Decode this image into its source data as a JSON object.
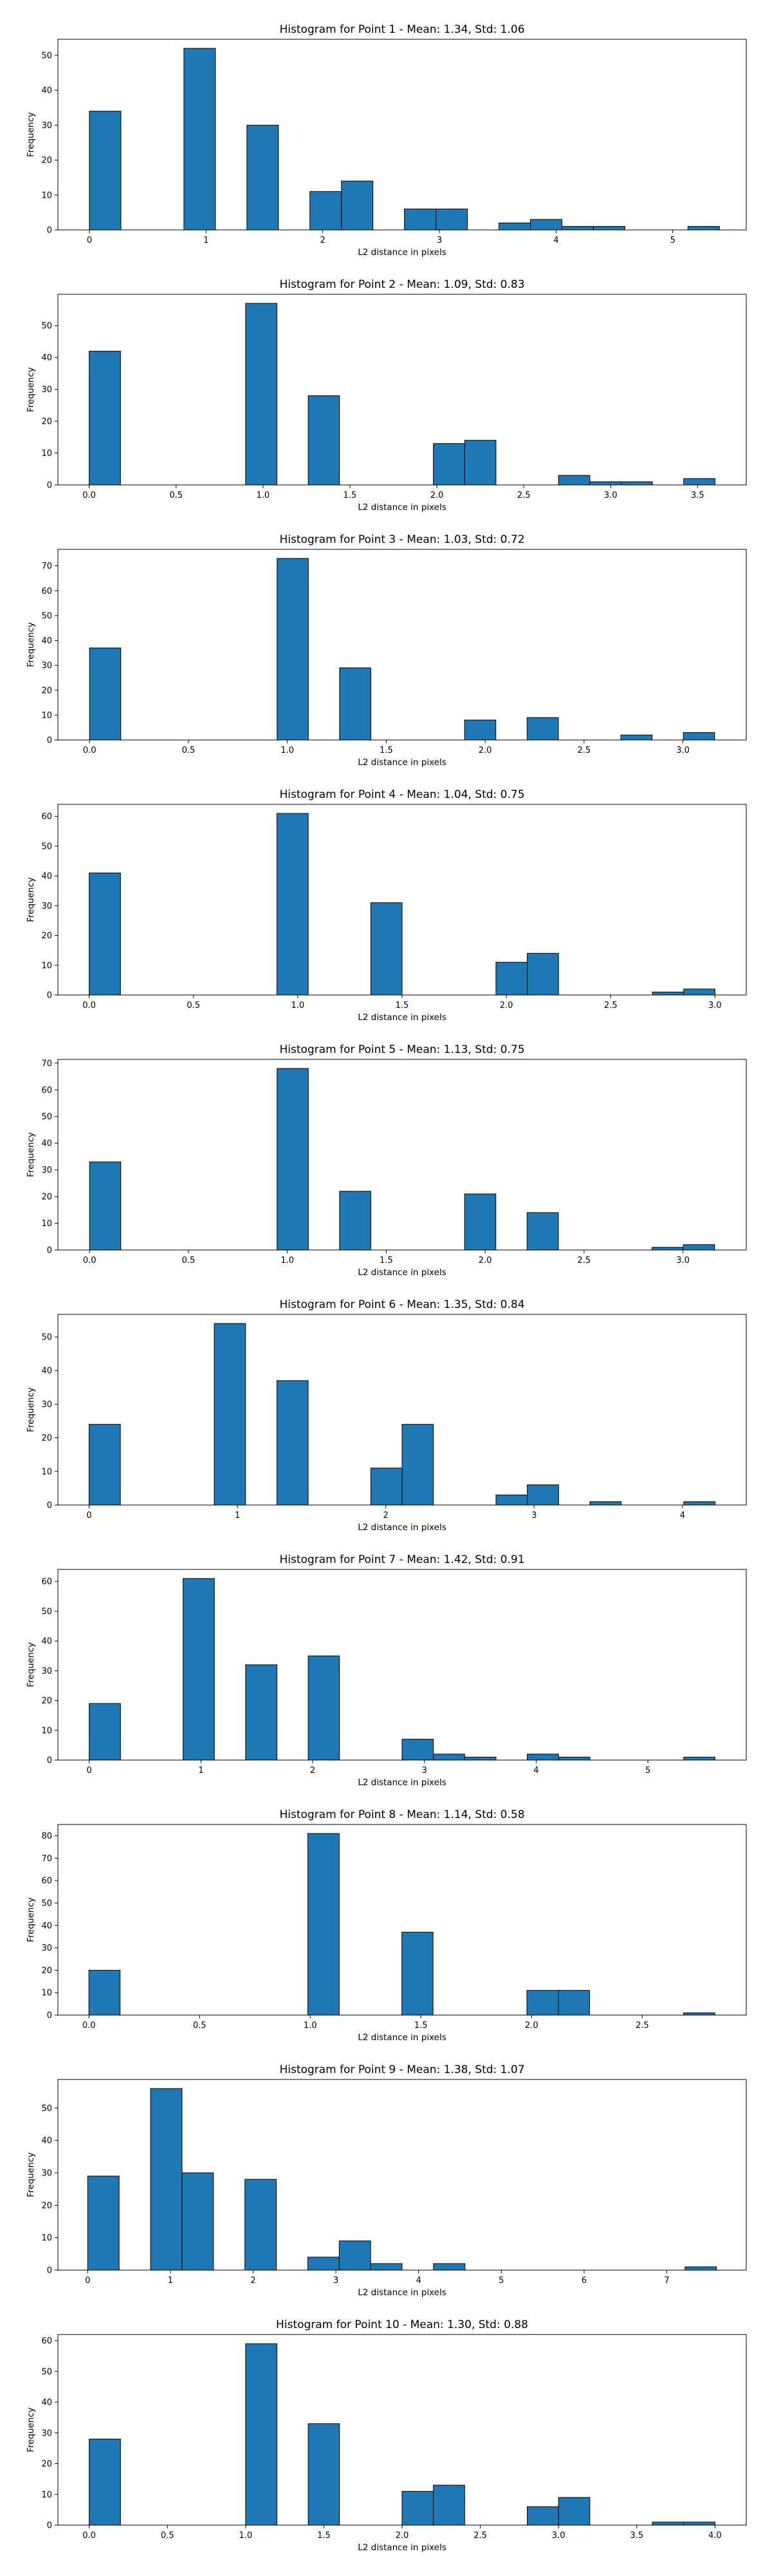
{
  "chart_data": [
    {
      "type": "bar",
      "title": "Histogram for Point 1 - Mean: 1.34, Std: 1.06",
      "xlabel": "L2 distance in pixels",
      "ylabel": "Frequency",
      "xlim": [
        -0.27,
        5.63
      ],
      "ylim": [
        0,
        54.6
      ],
      "xticks": [
        0,
        1,
        2,
        3,
        4,
        5
      ],
      "xtick_labels": [
        "0",
        "1",
        "2",
        "3",
        "4",
        "5"
      ],
      "yticks": [
        0,
        10,
        20,
        30,
        40,
        50
      ],
      "ytick_labels": [
        "0",
        "10",
        "20",
        "30",
        "40",
        "50"
      ],
      "bins": [
        {
          "x0": 0.0,
          "x1": 0.27,
          "count": 34
        },
        {
          "x0": 0.81,
          "x1": 1.08,
          "count": 52
        },
        {
          "x0": 1.35,
          "x1": 1.62,
          "count": 30
        },
        {
          "x0": 1.89,
          "x1": 2.16,
          "count": 11
        },
        {
          "x0": 2.16,
          "x1": 2.43,
          "count": 14
        },
        {
          "x0": 2.7,
          "x1": 2.97,
          "count": 6
        },
        {
          "x0": 2.97,
          "x1": 3.24,
          "count": 6
        },
        {
          "x0": 3.51,
          "x1": 3.78,
          "count": 2
        },
        {
          "x0": 3.78,
          "x1": 4.05,
          "count": 3
        },
        {
          "x0": 4.05,
          "x1": 4.32,
          "count": 1
        },
        {
          "x0": 4.32,
          "x1": 4.59,
          "count": 1
        },
        {
          "x0": 5.13,
          "x1": 5.4,
          "count": 1
        }
      ]
    },
    {
      "type": "bar",
      "title": "Histogram for Point 2 - Mean: 1.09, Std: 0.83",
      "xlabel": "L2 distance in pixels",
      "ylabel": "Frequency",
      "xlim": [
        -0.18,
        3.78
      ],
      "ylim": [
        0,
        59.85
      ],
      "xticks": [
        0,
        0.5,
        1,
        1.5,
        2,
        2.5,
        3,
        3.5
      ],
      "xtick_labels": [
        "0.0",
        "0.5",
        "1.0",
        "1.5",
        "2.0",
        "2.5",
        "3.0",
        "3.5"
      ],
      "yticks": [
        0,
        10,
        20,
        30,
        40,
        50
      ],
      "ytick_labels": [
        "0",
        "10",
        "20",
        "30",
        "40",
        "50"
      ],
      "bins": [
        {
          "x0": 0.0,
          "x1": 0.18,
          "count": 42
        },
        {
          "x0": 0.9,
          "x1": 1.08,
          "count": 57
        },
        {
          "x0": 1.26,
          "x1": 1.44,
          "count": 28
        },
        {
          "x0": 1.98,
          "x1": 2.16,
          "count": 13
        },
        {
          "x0": 2.16,
          "x1": 2.34,
          "count": 14
        },
        {
          "x0": 2.7,
          "x1": 2.88,
          "count": 3
        },
        {
          "x0": 2.88,
          "x1": 3.06,
          "count": 1
        },
        {
          "x0": 3.06,
          "x1": 3.24,
          "count": 1
        },
        {
          "x0": 3.42,
          "x1": 3.6,
          "count": 2
        }
      ]
    },
    {
      "type": "bar",
      "title": "Histogram for Point 3 - Mean: 1.03, Std: 0.72",
      "xlabel": "L2 distance in pixels",
      "ylabel": "Frequency",
      "xlim": [
        -0.16,
        3.32
      ],
      "ylim": [
        0,
        76.65
      ],
      "xticks": [
        0,
        0.5,
        1,
        1.5,
        2,
        2.5,
        3
      ],
      "xtick_labels": [
        "0.0",
        "0.5",
        "1.0",
        "1.5",
        "2.0",
        "2.5",
        "3.0"
      ],
      "yticks": [
        0,
        10,
        20,
        30,
        40,
        50,
        60,
        70
      ],
      "ytick_labels": [
        "0",
        "10",
        "20",
        "30",
        "40",
        "50",
        "60",
        "70"
      ],
      "bins": [
        {
          "x0": 0.0,
          "x1": 0.158,
          "count": 37
        },
        {
          "x0": 0.948,
          "x1": 1.106,
          "count": 73
        },
        {
          "x0": 1.264,
          "x1": 1.422,
          "count": 29
        },
        {
          "x0": 1.896,
          "x1": 2.054,
          "count": 8
        },
        {
          "x0": 2.212,
          "x1": 2.37,
          "count": 9
        },
        {
          "x0": 2.686,
          "x1": 2.844,
          "count": 2
        },
        {
          "x0": 3.002,
          "x1": 3.16,
          "count": 3
        }
      ]
    },
    {
      "type": "bar",
      "title": "Histogram for Point 4 - Mean: 1.04, Std: 0.75",
      "xlabel": "L2 distance in pixels",
      "ylabel": "Frequency",
      "xlim": [
        -0.15,
        3.15
      ],
      "ylim": [
        0,
        64.05
      ],
      "xticks": [
        0,
        0.5,
        1,
        1.5,
        2,
        2.5,
        3
      ],
      "xtick_labels": [
        "0.0",
        "0.5",
        "1.0",
        "1.5",
        "2.0",
        "2.5",
        "3.0"
      ],
      "yticks": [
        0,
        10,
        20,
        30,
        40,
        50,
        60
      ],
      "ytick_labels": [
        "0",
        "10",
        "20",
        "30",
        "40",
        "50",
        "60"
      ],
      "bins": [
        {
          "x0": 0.0,
          "x1": 0.15,
          "count": 41
        },
        {
          "x0": 0.9,
          "x1": 1.05,
          "count": 61
        },
        {
          "x0": 1.35,
          "x1": 1.5,
          "count": 31
        },
        {
          "x0": 1.95,
          "x1": 2.1,
          "count": 11
        },
        {
          "x0": 2.1,
          "x1": 2.25,
          "count": 14
        },
        {
          "x0": 2.7,
          "x1": 2.85,
          "count": 1
        },
        {
          "x0": 2.85,
          "x1": 3.0,
          "count": 2
        }
      ]
    },
    {
      "type": "bar",
      "title": "Histogram for Point 5 - Mean: 1.13, Std: 0.75",
      "xlabel": "L2 distance in pixels",
      "ylabel": "Frequency",
      "xlim": [
        -0.16,
        3.32
      ],
      "ylim": [
        0,
        71.4
      ],
      "xticks": [
        0,
        0.5,
        1,
        1.5,
        2,
        2.5,
        3
      ],
      "xtick_labels": [
        "0.0",
        "0.5",
        "1.0",
        "1.5",
        "2.0",
        "2.5",
        "3.0"
      ],
      "yticks": [
        0,
        10,
        20,
        30,
        40,
        50,
        60,
        70
      ],
      "ytick_labels": [
        "0",
        "10",
        "20",
        "30",
        "40",
        "50",
        "60",
        "70"
      ],
      "bins": [
        {
          "x0": 0.0,
          "x1": 0.158,
          "count": 33
        },
        {
          "x0": 0.948,
          "x1": 1.106,
          "count": 68
        },
        {
          "x0": 1.264,
          "x1": 1.422,
          "count": 22
        },
        {
          "x0": 1.896,
          "x1": 2.054,
          "count": 21
        },
        {
          "x0": 2.212,
          "x1": 2.37,
          "count": 14
        },
        {
          "x0": 2.844,
          "x1": 3.002,
          "count": 1
        },
        {
          "x0": 3.002,
          "x1": 3.16,
          "count": 2
        }
      ]
    },
    {
      "type": "bar",
      "title": "Histogram for Point 6 - Mean: 1.35, Std: 0.84",
      "xlabel": "L2 distance in pixels",
      "ylabel": "Frequency",
      "xlim": [
        -0.21,
        4.43
      ],
      "ylim": [
        0,
        56.7
      ],
      "xticks": [
        0,
        1,
        2,
        3,
        4
      ],
      "xtick_labels": [
        "0",
        "1",
        "2",
        "3",
        "4"
      ],
      "yticks": [
        0,
        10,
        20,
        30,
        40,
        50
      ],
      "ytick_labels": [
        "0",
        "10",
        "20",
        "30",
        "40",
        "50"
      ],
      "bins": [
        {
          "x0": 0.0,
          "x1": 0.211,
          "count": 24
        },
        {
          "x0": 0.844,
          "x1": 1.055,
          "count": 54
        },
        {
          "x0": 1.266,
          "x1": 1.477,
          "count": 37
        },
        {
          "x0": 1.899,
          "x1": 2.11,
          "count": 11
        },
        {
          "x0": 2.11,
          "x1": 2.321,
          "count": 24
        },
        {
          "x0": 2.743,
          "x1": 2.954,
          "count": 3
        },
        {
          "x0": 2.954,
          "x1": 3.165,
          "count": 6
        },
        {
          "x0": 3.376,
          "x1": 3.587,
          "count": 1
        },
        {
          "x0": 4.009,
          "x1": 4.22,
          "count": 1
        }
      ]
    },
    {
      "type": "bar",
      "title": "Histogram for Point 7 - Mean: 1.42, Std: 0.91",
      "xlabel": "L2 distance in pixels",
      "ylabel": "Frequency",
      "xlim": [
        -0.28,
        5.88
      ],
      "ylim": [
        0,
        64.05
      ],
      "xticks": [
        0,
        1,
        2,
        3,
        4,
        5
      ],
      "xtick_labels": [
        "0",
        "1",
        "2",
        "3",
        "4",
        "5"
      ],
      "yticks": [
        0,
        10,
        20,
        30,
        40,
        50,
        60
      ],
      "ytick_labels": [
        "0",
        "10",
        "20",
        "30",
        "40",
        "50",
        "60"
      ],
      "bins": [
        {
          "x0": 0.0,
          "x1": 0.28,
          "count": 19
        },
        {
          "x0": 0.84,
          "x1": 1.12,
          "count": 61
        },
        {
          "x0": 1.4,
          "x1": 1.68,
          "count": 32
        },
        {
          "x0": 1.96,
          "x1": 2.24,
          "count": 35
        },
        {
          "x0": 2.8,
          "x1": 3.08,
          "count": 7
        },
        {
          "x0": 3.08,
          "x1": 3.36,
          "count": 2
        },
        {
          "x0": 3.36,
          "x1": 3.64,
          "count": 1
        },
        {
          "x0": 3.92,
          "x1": 4.2,
          "count": 2
        },
        {
          "x0": 4.2,
          "x1": 4.48,
          "count": 1
        },
        {
          "x0": 5.32,
          "x1": 5.6,
          "count": 1
        }
      ]
    },
    {
      "type": "bar",
      "title": "Histogram for Point 8 - Mean: 1.14, Std: 0.58",
      "xlabel": "L2 distance in pixels",
      "ylabel": "Frequency",
      "xlim": [
        -0.14,
        2.97
      ],
      "ylim": [
        0,
        85.05
      ],
      "xticks": [
        0,
        0.5,
        1,
        1.5,
        2,
        2.5
      ],
      "xtick_labels": [
        "0.0",
        "0.5",
        "1.0",
        "1.5",
        "2.0",
        "2.5"
      ],
      "yticks": [
        0,
        10,
        20,
        30,
        40,
        50,
        60,
        70,
        80
      ],
      "ytick_labels": [
        "0",
        "10",
        "20",
        "30",
        "40",
        "50",
        "60",
        "70",
        "80"
      ],
      "bins": [
        {
          "x0": 0.0,
          "x1": 0.141,
          "count": 20
        },
        {
          "x0": 0.989,
          "x1": 1.131,
          "count": 81
        },
        {
          "x0": 1.414,
          "x1": 1.555,
          "count": 37
        },
        {
          "x0": 1.979,
          "x1": 2.121,
          "count": 11
        },
        {
          "x0": 2.121,
          "x1": 2.262,
          "count": 11
        },
        {
          "x0": 2.687,
          "x1": 2.828,
          "count": 1
        }
      ]
    },
    {
      "type": "bar",
      "title": "Histogram for Point 9 - Mean: 1.38, Std: 1.07",
      "xlabel": "L2 distance in pixels",
      "ylabel": "Frequency",
      "xlim": [
        -0.36,
        7.96
      ],
      "ylim": [
        0,
        58.8
      ],
      "xticks": [
        0,
        1,
        2,
        3,
        4,
        5,
        6,
        7
      ],
      "xtick_labels": [
        "0",
        "1",
        "2",
        "3",
        "4",
        "5",
        "6",
        "7"
      ],
      "yticks": [
        0,
        10,
        20,
        30,
        40,
        50
      ],
      "ytick_labels": [
        "0",
        "10",
        "20",
        "30",
        "40",
        "50"
      ],
      "bins": [
        {
          "x0": 0.0,
          "x1": 0.38,
          "count": 29
        },
        {
          "x0": 0.76,
          "x1": 1.14,
          "count": 56
        },
        {
          "x0": 1.14,
          "x1": 1.52,
          "count": 30
        },
        {
          "x0": 1.9,
          "x1": 2.28,
          "count": 28
        },
        {
          "x0": 2.66,
          "x1": 3.04,
          "count": 4
        },
        {
          "x0": 3.04,
          "x1": 3.42,
          "count": 9
        },
        {
          "x0": 3.42,
          "x1": 3.8,
          "count": 2
        },
        {
          "x0": 4.18,
          "x1": 4.56,
          "count": 2
        },
        {
          "x0": 7.22,
          "x1": 7.6,
          "count": 1
        }
      ]
    },
    {
      "type": "bar",
      "title": "Histogram for Point 10 - Mean: 1.30, Std: 0.88",
      "xlabel": "L2 distance in pixels",
      "ylabel": "Frequency",
      "xlim": [
        -0.2,
        4.2
      ],
      "ylim": [
        0,
        62.0
      ],
      "xticks": [
        0,
        0.5,
        1,
        1.5,
        2,
        2.5,
        3,
        3.5,
        4
      ],
      "xtick_labels": [
        "0.0",
        "0.5",
        "1.0",
        "1.5",
        "2.0",
        "2.5",
        "3.0",
        "3.5",
        "4.0"
      ],
      "yticks": [
        0,
        10,
        20,
        30,
        40,
        50,
        60
      ],
      "ytick_labels": [
        "0",
        "10",
        "20",
        "30",
        "40",
        "50",
        "60"
      ],
      "bins": [
        {
          "x0": 0.0,
          "x1": 0.2,
          "count": 28
        },
        {
          "x0": 1.0,
          "x1": 1.2,
          "count": 59
        },
        {
          "x0": 1.4,
          "x1": 1.6,
          "count": 33
        },
        {
          "x0": 2.0,
          "x1": 2.2,
          "count": 11
        },
        {
          "x0": 2.2,
          "x1": 2.4,
          "count": 13
        },
        {
          "x0": 2.8,
          "x1": 3.0,
          "count": 6
        },
        {
          "x0": 3.0,
          "x1": 3.2,
          "count": 9
        },
        {
          "x0": 3.6,
          "x1": 3.8,
          "count": 1
        },
        {
          "x0": 3.8,
          "x1": 4.0,
          "count": 1
        }
      ]
    }
  ]
}
